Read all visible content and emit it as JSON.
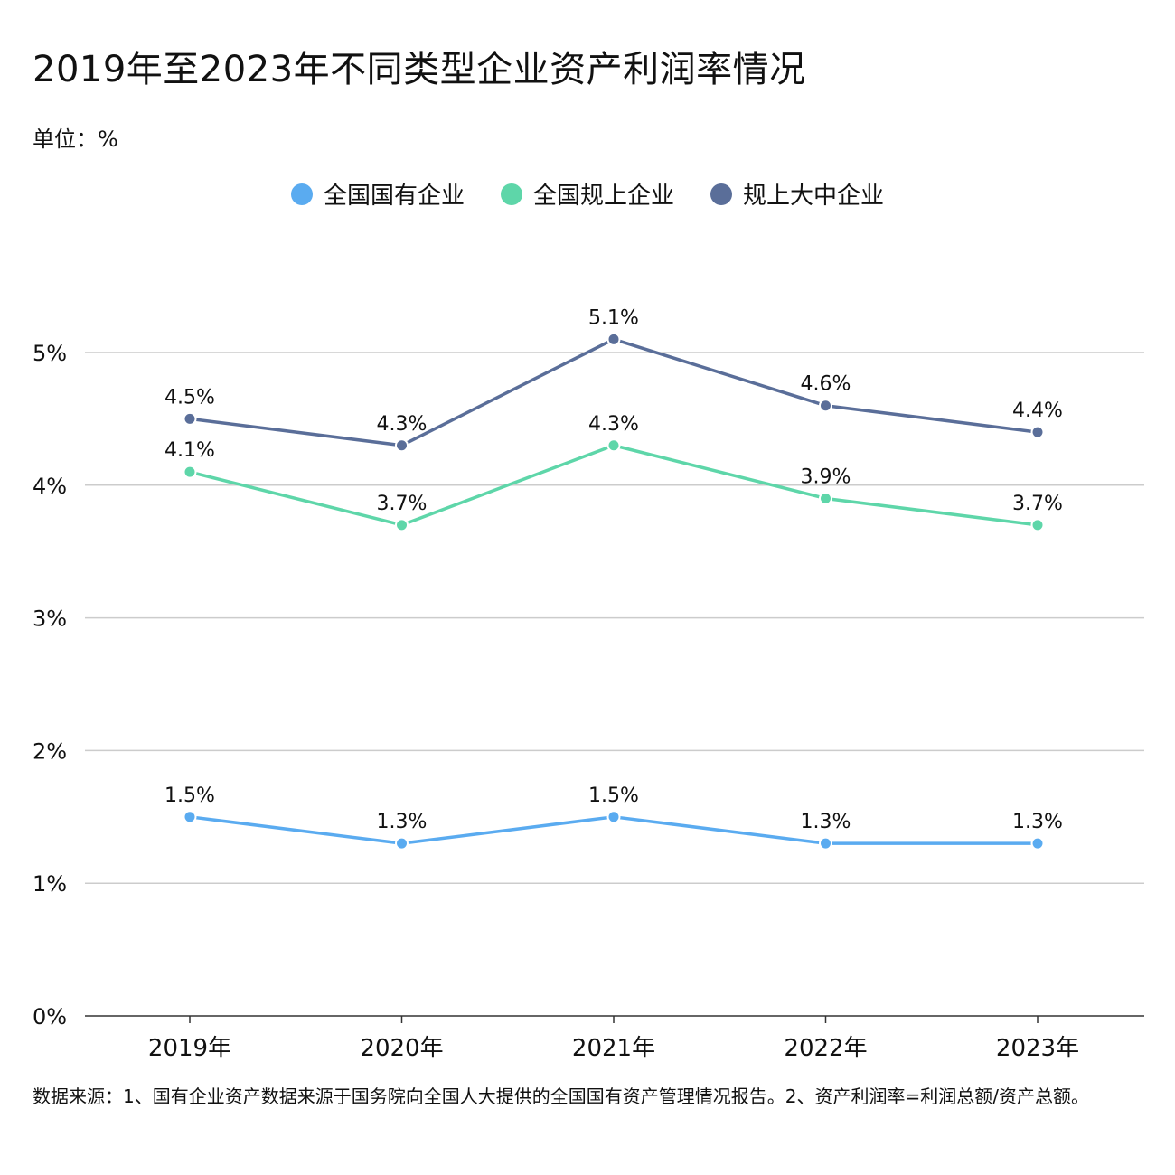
{
  "title": "2019年至2023年不同类型企业资产利润率情况",
  "unit_label": "单位：%",
  "footnote": "数据来源：1、国有企业资产数据来源于国务院向全国人大提供的全国国有资产管理情况报告。2、资产利润率=利润总额/资产总额。",
  "chart_data": {
    "type": "line",
    "title": "2019年至2023年不同类型企业资产利润率情况",
    "xlabel": "",
    "ylabel": "单位：%",
    "categories": [
      "2019年",
      "2020年",
      "2021年",
      "2022年",
      "2023年"
    ],
    "ylim": [
      0,
      5
    ],
    "yticks": [
      0,
      1,
      2,
      3,
      4,
      5
    ],
    "ytick_labels": [
      "0%",
      "1%",
      "2%",
      "3%",
      "4%",
      "5%"
    ],
    "grid": true,
    "legend_position": "top-center",
    "series": [
      {
        "name": "全国国有企业",
        "color": "#5aabf0",
        "values": [
          1.5,
          1.3,
          1.5,
          1.3,
          1.3
        ],
        "labels": [
          "1.5%",
          "1.3%",
          "1.5%",
          "1.3%",
          "1.3%"
        ]
      },
      {
        "name": "全国规上企业",
        "color": "#5ed6a9",
        "values": [
          4.1,
          3.7,
          4.3,
          3.9,
          3.7
        ],
        "labels": [
          "4.1%",
          "3.7%",
          "4.3%",
          "3.9%",
          "3.7%"
        ]
      },
      {
        "name": "规上大中企业",
        "color": "#5a6e99",
        "values": [
          4.5,
          4.3,
          5.1,
          4.6,
          4.4
        ],
        "labels": [
          "4.5%",
          "4.3%",
          "5.1%",
          "4.6%",
          "4.4%"
        ]
      }
    ]
  }
}
